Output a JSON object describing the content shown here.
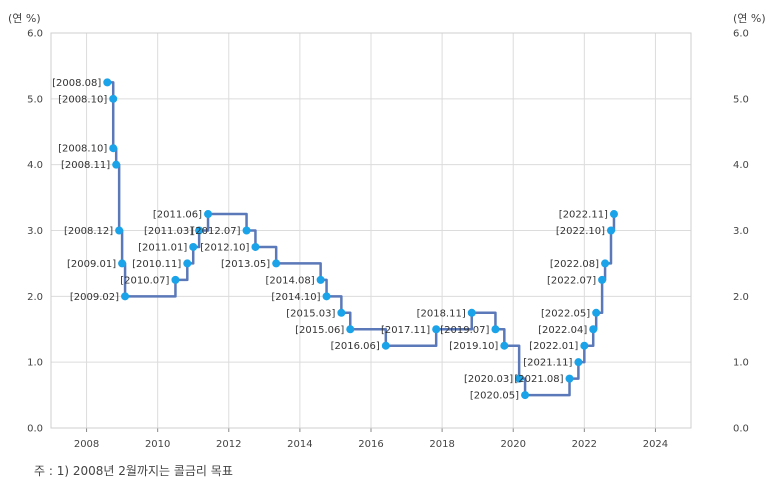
{
  "chart_data": {
    "type": "line",
    "step": true,
    "ylabel_left": "(연 %)",
    "ylabel_right": "(연 %)",
    "ylim": [
      0,
      6
    ],
    "yticks": [
      "0.0",
      "1.0",
      "2.0",
      "3.0",
      "4.0",
      "5.0",
      "6.0"
    ],
    "xlim": [
      2007.0,
      2025.0
    ],
    "xticks": [
      "2008",
      "2010",
      "2012",
      "2014",
      "2016",
      "2018",
      "2020",
      "2022",
      "2024"
    ],
    "grid": true,
    "line_color": "#5b78b8",
    "marker_color": "#1aa3e8",
    "points": [
      {
        "date": "2008.08",
        "value": 5.25
      },
      {
        "date": "2008.10",
        "value": 5.0
      },
      {
        "date": "2008.10",
        "value": 4.25
      },
      {
        "date": "2008.11",
        "value": 4.0
      },
      {
        "date": "2008.12",
        "value": 3.0
      },
      {
        "date": "2009.01",
        "value": 2.5
      },
      {
        "date": "2009.02",
        "value": 2.0
      },
      {
        "date": "2010.07",
        "value": 2.25
      },
      {
        "date": "2010.11",
        "value": 2.5
      },
      {
        "date": "2011.01",
        "value": 2.75
      },
      {
        "date": "2011.03",
        "value": 3.0
      },
      {
        "date": "2011.06",
        "value": 3.25
      },
      {
        "date": "2012.07",
        "value": 3.0
      },
      {
        "date": "2012.10",
        "value": 2.75
      },
      {
        "date": "2013.05",
        "value": 2.5
      },
      {
        "date": "2014.08",
        "value": 2.25
      },
      {
        "date": "2014.10",
        "value": 2.0
      },
      {
        "date": "2015.03",
        "value": 1.75
      },
      {
        "date": "2015.06",
        "value": 1.5
      },
      {
        "date": "2016.06",
        "value": 1.25
      },
      {
        "date": "2017.11",
        "value": 1.5
      },
      {
        "date": "2018.11",
        "value": 1.75
      },
      {
        "date": "2019.07",
        "value": 1.5
      },
      {
        "date": "2019.10",
        "value": 1.25
      },
      {
        "date": "2020.03",
        "value": 0.75
      },
      {
        "date": "2020.05",
        "value": 0.5
      },
      {
        "date": "2021.08",
        "value": 0.75
      },
      {
        "date": "2021.11",
        "value": 1.0
      },
      {
        "date": "2022.01",
        "value": 1.25
      },
      {
        "date": "2022.04",
        "value": 1.5
      },
      {
        "date": "2022.05",
        "value": 1.75
      },
      {
        "date": "2022.07",
        "value": 2.25
      },
      {
        "date": "2022.08",
        "value": 2.5
      },
      {
        "date": "2022.10",
        "value": 3.0
      },
      {
        "date": "2022.11",
        "value": 3.25
      }
    ],
    "labels": [
      {
        "text": "[2008.08]",
        "side": "left"
      },
      {
        "text": "[2008.10]",
        "side": "left"
      },
      {
        "text": "[2008.10]",
        "side": "left"
      },
      {
        "text": "[2008.11]",
        "side": "left"
      },
      {
        "text": "[2008.12]",
        "side": "left"
      },
      {
        "text": "[2009.01]",
        "side": "left"
      },
      {
        "text": "[2009.02]",
        "side": "left"
      },
      {
        "text": "[2010.07]",
        "side": "left"
      },
      {
        "text": "[2010.11]",
        "side": "left"
      },
      {
        "text": "[2011.01]",
        "side": "left"
      },
      {
        "text": "[2011.03]",
        "side": "left"
      },
      {
        "text": "[2011.06]",
        "side": "left"
      },
      {
        "text": "[2012.07]",
        "side": "left"
      },
      {
        "text": "[2012.10]",
        "side": "left"
      },
      {
        "text": "[2013.05]",
        "side": "left"
      },
      {
        "text": "[2014.08]",
        "side": "left"
      },
      {
        "text": "[2014.10]",
        "side": "left"
      },
      {
        "text": "[2015.03]",
        "side": "left"
      },
      {
        "text": "[2015.06]",
        "side": "left"
      },
      {
        "text": "[2016.06]",
        "side": "left"
      },
      {
        "text": "[2017.11]",
        "side": "left"
      },
      {
        "text": "[2018.11]",
        "side": "left"
      },
      {
        "text": "[2019.07]",
        "side": "left"
      },
      {
        "text": "[2019.10]",
        "side": "left"
      },
      {
        "text": "[2020.03]",
        "side": "left"
      },
      {
        "text": "[2020.05]",
        "side": "left"
      },
      {
        "text": "[2021.08]",
        "side": "left"
      },
      {
        "text": "[2021.11]",
        "side": "left"
      },
      {
        "text": "[2022.01]",
        "side": "left"
      },
      {
        "text": "[2022.04]",
        "side": "left"
      },
      {
        "text": "[2022.05]",
        "side": "left"
      },
      {
        "text": "[2022.07]",
        "side": "left"
      },
      {
        "text": "[2022.08]",
        "side": "left"
      },
      {
        "text": "[2022.10]",
        "side": "left"
      },
      {
        "text": "[2022.11]",
        "side": "left"
      }
    ]
  },
  "note": "주 : 1) 2008년 2월까지는 콜금리 목표"
}
